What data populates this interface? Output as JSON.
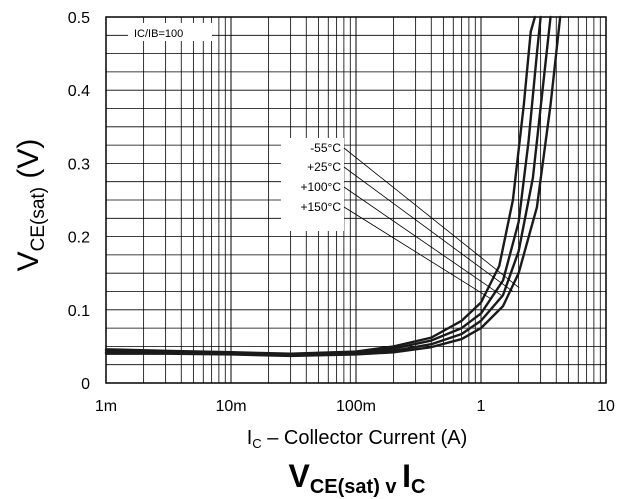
{
  "chart_data": {
    "type": "line",
    "title": "VCE(sat) v IC",
    "title_parts": {
      "main": "V",
      "sub": "CE(sat)",
      "mid": " v ",
      "main2": "I",
      "sub2": "C"
    },
    "xlabel": "IC – Collector Current (A)",
    "xlabel_parts": {
      "main": "I",
      "sub": "C",
      "rest": " – Collector Current (A)"
    },
    "ylabel": "VCE(sat) (V)",
    "ylabel_parts": {
      "main": "V",
      "sub": "CE(sat)",
      "rest": " (V)"
    },
    "x_scale": "log",
    "xlim": [
      0.001,
      10
    ],
    "ylim": [
      0,
      0.5
    ],
    "x_ticks": [
      {
        "value": 0.001,
        "label": "1m"
      },
      {
        "value": 0.01,
        "label": "10m"
      },
      {
        "value": 0.1,
        "label": "100m"
      },
      {
        "value": 1,
        "label": "1"
      },
      {
        "value": 10,
        "label": "10"
      }
    ],
    "y_ticks": [
      {
        "value": 0,
        "label": "0"
      },
      {
        "value": 0.1,
        "label": "0.1"
      },
      {
        "value": 0.2,
        "label": "0.2"
      },
      {
        "value": 0.3,
        "label": "0.3"
      },
      {
        "value": 0.4,
        "label": "0.4"
      },
      {
        "value": 0.5,
        "label": "0.5"
      }
    ],
    "grid": true,
    "condition_label": "IC/IB=100",
    "legend_placement": "center",
    "series": [
      {
        "name": "-55°C",
        "x": [
          0.001,
          0.003,
          0.01,
          0.03,
          0.1,
          0.2,
          0.4,
          0.7,
          1.0,
          1.4,
          1.8,
          2.2,
          2.5,
          2.7
        ],
        "y": [
          0.046,
          0.044,
          0.042,
          0.04,
          0.043,
          0.05,
          0.062,
          0.085,
          0.11,
          0.16,
          0.25,
          0.38,
          0.48,
          0.5
        ]
      },
      {
        "name": "+25°C",
        "x": [
          0.001,
          0.003,
          0.01,
          0.03,
          0.1,
          0.2,
          0.4,
          0.7,
          1.0,
          1.5,
          2.0,
          2.4,
          2.8,
          3.0
        ],
        "y": [
          0.044,
          0.043,
          0.041,
          0.039,
          0.041,
          0.047,
          0.058,
          0.075,
          0.095,
          0.14,
          0.22,
          0.33,
          0.45,
          0.5
        ]
      },
      {
        "name": "+100°C",
        "x": [
          0.001,
          0.003,
          0.01,
          0.03,
          0.1,
          0.2,
          0.4,
          0.7,
          1.0,
          1.5,
          2.0,
          2.6,
          3.2,
          3.6
        ],
        "y": [
          0.042,
          0.041,
          0.04,
          0.038,
          0.04,
          0.044,
          0.053,
          0.067,
          0.085,
          0.12,
          0.18,
          0.28,
          0.42,
          0.5
        ]
      },
      {
        "name": "+150°C",
        "x": [
          0.001,
          0.003,
          0.01,
          0.03,
          0.1,
          0.2,
          0.4,
          0.7,
          1.0,
          1.5,
          2.0,
          2.8,
          3.6,
          4.3
        ],
        "y": [
          0.04,
          0.04,
          0.039,
          0.037,
          0.039,
          0.042,
          0.049,
          0.06,
          0.075,
          0.105,
          0.15,
          0.24,
          0.38,
          0.5
        ]
      }
    ],
    "legend_arrow_targets": [
      {
        "name": "-55°C",
        "x": 2.02,
        "y": 0.13
      },
      {
        "name": "+25°C",
        "x": 1.8,
        "y": 0.125
      },
      {
        "name": "+100°C",
        "x": 1.45,
        "y": 0.12
      },
      {
        "name": "+150°C",
        "x": 1.2,
        "y": 0.115
      }
    ],
    "colors": {
      "line": "#1a1a1a",
      "grid": "#000000"
    }
  }
}
